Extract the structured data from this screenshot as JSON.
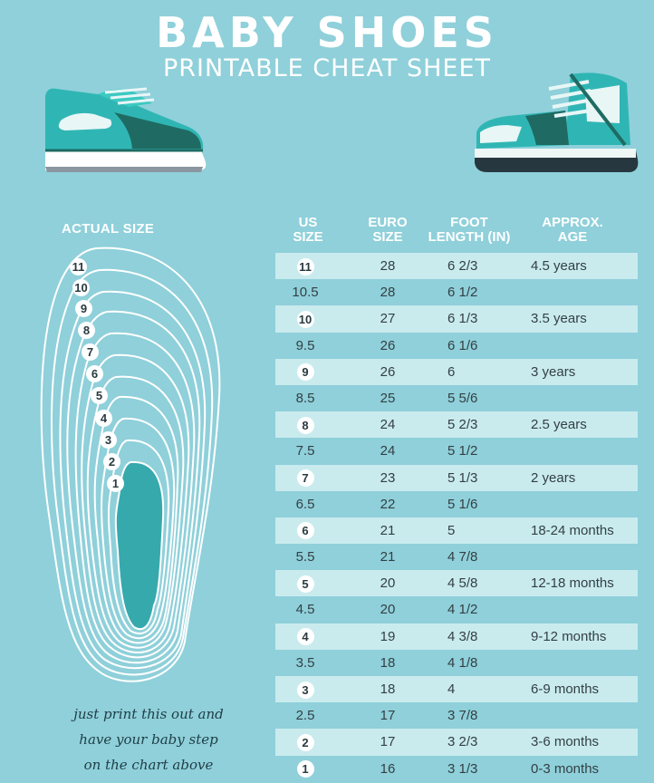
{
  "header": {
    "title": "BABY SHOES",
    "subtitle": "PRINTABLE CHEAT SHEET"
  },
  "colors": {
    "background": "#8fd0da",
    "row_stripe": "#c9ebee",
    "foot": "#36a9ad",
    "shoe_teal": "#2fb6b4",
    "shoe_dark": "#1f6b63"
  },
  "icons": [
    "sneaker-low-icon",
    "sneaker-high-icon",
    "foot-outline-icon"
  ],
  "foot_panel": {
    "label": "ACTUAL SIZE",
    "size_markers": [
      "11",
      "10",
      "9",
      "8",
      "7",
      "6",
      "5",
      "4",
      "3",
      "2",
      "1"
    ],
    "note_lines": [
      "just print this out and",
      "have your baby step",
      "on the chart above"
    ]
  },
  "table": {
    "columns": [
      {
        "line1": "US",
        "line2": "SIZE"
      },
      {
        "line1": "EURO",
        "line2": "SIZE"
      },
      {
        "line1": "FOOT",
        "line2": "LENGTH (IN)"
      },
      {
        "line1": "APPROX.",
        "line2": "AGE"
      }
    ],
    "rows": [
      {
        "us": "11",
        "euro": "28",
        "foot": "6 2/3",
        "age": "4.5 years"
      },
      {
        "us": "10.5",
        "euro": "28",
        "foot": "6 1/2",
        "age": ""
      },
      {
        "us": "10",
        "euro": "27",
        "foot": "6 1/3",
        "age": "3.5 years"
      },
      {
        "us": "9.5",
        "euro": "26",
        "foot": "6 1/6",
        "age": ""
      },
      {
        "us": "9",
        "euro": "26",
        "foot": "6",
        "age": "3 years"
      },
      {
        "us": "8.5",
        "euro": "25",
        "foot": "5 5/6",
        "age": ""
      },
      {
        "us": "8",
        "euro": "24",
        "foot": "5 2/3",
        "age": "2.5 years"
      },
      {
        "us": "7.5",
        "euro": "24",
        "foot": "5 1/2",
        "age": ""
      },
      {
        "us": "7",
        "euro": "23",
        "foot": "5 1/3",
        "age": "2 years"
      },
      {
        "us": "6.5",
        "euro": "22",
        "foot": "5 1/6",
        "age": ""
      },
      {
        "us": "6",
        "euro": "21",
        "foot": "5",
        "age": "18-24 months"
      },
      {
        "us": "5.5",
        "euro": "21",
        "foot": "4 7/8",
        "age": ""
      },
      {
        "us": "5",
        "euro": "20",
        "foot": "4 5/8",
        "age": "12-18 months"
      },
      {
        "us": "4.5",
        "euro": "20",
        "foot": "4 1/2",
        "age": ""
      },
      {
        "us": "4",
        "euro": "19",
        "foot": "4 3/8",
        "age": "9-12 months"
      },
      {
        "us": "3.5",
        "euro": "18",
        "foot": "4 1/8",
        "age": ""
      },
      {
        "us": "3",
        "euro": "18",
        "foot": "4",
        "age": "6-9 months"
      },
      {
        "us": "2.5",
        "euro": "17",
        "foot": "3 7/8",
        "age": ""
      },
      {
        "us": "2",
        "euro": "17",
        "foot": "3 2/3",
        "age": "3-6 months"
      },
      {
        "us": "1",
        "euro": "16",
        "foot": "3 1/3",
        "age": "0-3 months"
      }
    ]
  }
}
